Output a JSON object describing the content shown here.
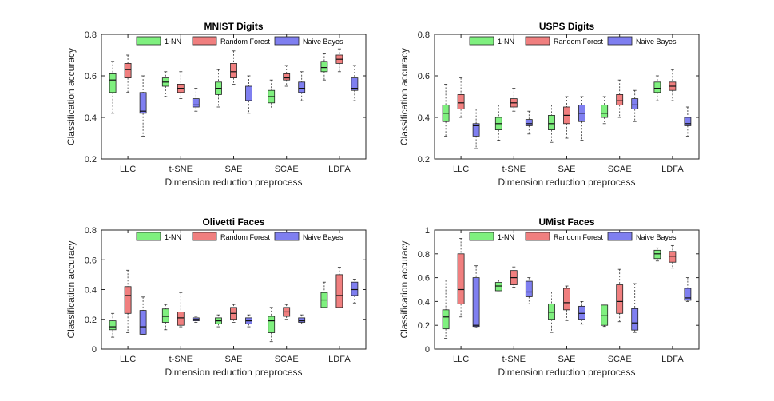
{
  "legend_labels": [
    "1-NN",
    "Random Forest",
    "Naive Bayes"
  ],
  "colors": {
    "nn": "#7ff07f",
    "rf": "#f07f7f",
    "nb": "#7f7ff0"
  },
  "chart_data": [
    {
      "type": "box",
      "title": "MNIST Digits",
      "xlabel": "Dimension reduction preprocess",
      "ylabel": "Classification accuracy",
      "ylim": [
        0.2,
        0.8
      ],
      "yticks": [
        "0.2",
        "0.4",
        "0.6",
        "0.8"
      ],
      "categories": [
        "LLC",
        "t-SNE",
        "SAE",
        "SCAE",
        "LDFA"
      ],
      "series": [
        {
          "name": "1-NN",
          "boxes": [
            {
              "min": 0.42,
              "q1": 0.52,
              "median": 0.58,
              "q3": 0.61,
              "max": 0.67
            },
            {
              "min": 0.5,
              "q1": 0.55,
              "median": 0.57,
              "q3": 0.59,
              "max": 0.62
            },
            {
              "min": 0.45,
              "q1": 0.51,
              "median": 0.54,
              "q3": 0.57,
              "max": 0.63
            },
            {
              "min": 0.44,
              "q1": 0.47,
              "median": 0.5,
              "q3": 0.53,
              "max": 0.58
            },
            {
              "min": 0.58,
              "q1": 0.62,
              "median": 0.64,
              "q3": 0.67,
              "max": 0.71
            }
          ]
        },
        {
          "name": "Random Forest",
          "boxes": [
            {
              "min": 0.52,
              "q1": 0.59,
              "median": 0.63,
              "q3": 0.66,
              "max": 0.7
            },
            {
              "min": 0.49,
              "q1": 0.52,
              "median": 0.54,
              "q3": 0.56,
              "max": 0.62
            },
            {
              "min": 0.56,
              "q1": 0.59,
              "median": 0.62,
              "q3": 0.66,
              "max": 0.72
            },
            {
              "min": 0.55,
              "q1": 0.58,
              "median": 0.59,
              "q3": 0.61,
              "max": 0.65
            },
            {
              "min": 0.62,
              "q1": 0.66,
              "median": 0.68,
              "q3": 0.7,
              "max": 0.73
            }
          ]
        },
        {
          "name": "Naive Bayes",
          "boxes": [
            {
              "min": 0.31,
              "q1": 0.42,
              "median": 0.43,
              "q3": 0.52,
              "max": 0.6
            },
            {
              "min": 0.43,
              "q1": 0.45,
              "median": 0.46,
              "q3": 0.49,
              "max": 0.54
            },
            {
              "min": 0.42,
              "q1": 0.48,
              "median": 0.48,
              "q3": 0.55,
              "max": 0.6
            },
            {
              "min": 0.48,
              "q1": 0.52,
              "median": 0.54,
              "q3": 0.57,
              "max": 0.62
            },
            {
              "min": 0.48,
              "q1": 0.53,
              "median": 0.54,
              "q3": 0.59,
              "max": 0.65
            }
          ]
        }
      ]
    },
    {
      "type": "box",
      "title": "USPS Digits",
      "xlabel": "Dimension reduction preprocess",
      "ylabel": "Classification accuracy",
      "ylim": [
        0.2,
        0.8
      ],
      "yticks": [
        "0.2",
        "0.4",
        "0.6",
        "0.8"
      ],
      "categories": [
        "LLC",
        "t-SNE",
        "SAE",
        "SCAE",
        "LDFA"
      ],
      "series": [
        {
          "name": "1-NN",
          "boxes": [
            {
              "min": 0.31,
              "q1": 0.38,
              "median": 0.42,
              "q3": 0.46,
              "max": 0.56
            },
            {
              "min": 0.29,
              "q1": 0.34,
              "median": 0.37,
              "q3": 0.4,
              "max": 0.46
            },
            {
              "min": 0.28,
              "q1": 0.34,
              "median": 0.37,
              "q3": 0.41,
              "max": 0.46
            },
            {
              "min": 0.37,
              "q1": 0.4,
              "median": 0.42,
              "q3": 0.46,
              "max": 0.5
            },
            {
              "min": 0.48,
              "q1": 0.52,
              "median": 0.54,
              "q3": 0.57,
              "max": 0.6
            }
          ]
        },
        {
          "name": "Random Forest",
          "boxes": [
            {
              "min": 0.4,
              "q1": 0.44,
              "median": 0.47,
              "q3": 0.51,
              "max": 0.59
            },
            {
              "min": 0.43,
              "q1": 0.45,
              "median": 0.47,
              "q3": 0.49,
              "max": 0.54
            },
            {
              "min": 0.3,
              "q1": 0.37,
              "median": 0.41,
              "q3": 0.45,
              "max": 0.5
            },
            {
              "min": 0.4,
              "q1": 0.46,
              "median": 0.48,
              "q3": 0.51,
              "max": 0.58
            },
            {
              "min": 0.48,
              "q1": 0.53,
              "median": 0.55,
              "q3": 0.57,
              "max": 0.63
            }
          ]
        },
        {
          "name": "Naive Bayes",
          "boxes": [
            {
              "min": 0.25,
              "q1": 0.31,
              "median": 0.36,
              "q3": 0.37,
              "max": 0.44
            },
            {
              "min": 0.32,
              "q1": 0.36,
              "median": 0.37,
              "q3": 0.39,
              "max": 0.43
            },
            {
              "min": 0.29,
              "q1": 0.38,
              "median": 0.42,
              "q3": 0.46,
              "max": 0.5
            },
            {
              "min": 0.38,
              "q1": 0.44,
              "median": 0.46,
              "q3": 0.49,
              "max": 0.53
            },
            {
              "min": 0.31,
              "q1": 0.36,
              "median": 0.37,
              "q3": 0.4,
              "max": 0.45
            }
          ]
        }
      ]
    },
    {
      "type": "box",
      "title": "Olivetti Faces",
      "xlabel": "Dimension reduction preprocess",
      "ylabel": "Classification accuracy",
      "ylim": [
        0,
        0.8
      ],
      "yticks": [
        "0",
        "0.2",
        "0.4",
        "0.6",
        "0.8"
      ],
      "categories": [
        "LLC",
        "t-SNE",
        "SAE",
        "SCAE",
        "LDFA"
      ],
      "series": [
        {
          "name": "1-NN",
          "boxes": [
            {
              "min": 0.08,
              "q1": 0.13,
              "median": 0.15,
              "q3": 0.19,
              "max": 0.24
            },
            {
              "min": 0.13,
              "q1": 0.18,
              "median": 0.22,
              "q3": 0.27,
              "max": 0.3
            },
            {
              "min": 0.15,
              "q1": 0.17,
              "median": 0.19,
              "q3": 0.21,
              "max": 0.23
            },
            {
              "min": 0.05,
              "q1": 0.11,
              "median": 0.19,
              "q3": 0.22,
              "max": 0.28
            },
            {
              "min": 0.28,
              "q1": 0.28,
              "median": 0.33,
              "q3": 0.38,
              "max": 0.45
            }
          ]
        },
        {
          "name": "Random Forest",
          "boxes": [
            {
              "min": 0.11,
              "q1": 0.24,
              "median": 0.36,
              "q3": 0.42,
              "max": 0.53
            },
            {
              "min": 0.15,
              "q1": 0.16,
              "median": 0.21,
              "q3": 0.25,
              "max": 0.38
            },
            {
              "min": 0.18,
              "q1": 0.2,
              "median": 0.24,
              "q3": 0.28,
              "max": 0.3
            },
            {
              "min": 0.2,
              "q1": 0.22,
              "median": 0.25,
              "q3": 0.28,
              "max": 0.3
            },
            {
              "min": 0.28,
              "q1": 0.28,
              "median": 0.36,
              "q3": 0.5,
              "max": 0.55
            }
          ]
        },
        {
          "name": "Naive Bayes",
          "boxes": [
            {
              "min": 0.1,
              "q1": 0.1,
              "median": 0.15,
              "q3": 0.26,
              "max": 0.35
            },
            {
              "min": 0.18,
              "q1": 0.19,
              "median": 0.2,
              "q3": 0.21,
              "max": 0.22
            },
            {
              "min": 0.15,
              "q1": 0.17,
              "median": 0.19,
              "q3": 0.21,
              "max": 0.23
            },
            {
              "min": 0.17,
              "q1": 0.18,
              "median": 0.19,
              "q3": 0.21,
              "max": 0.23
            },
            {
              "min": 0.31,
              "q1": 0.36,
              "median": 0.4,
              "q3": 0.45,
              "max": 0.47
            }
          ]
        }
      ]
    },
    {
      "type": "box",
      "title": "UMist Faces",
      "xlabel": "Dimension reduction preprocess",
      "ylabel": "Classification accuracy",
      "ylim": [
        0,
        1
      ],
      "yticks": [
        "0",
        "0.2",
        "0.4",
        "0.6",
        "0.8",
        "1"
      ],
      "categories": [
        "LLC",
        "t-SNE",
        "SAE",
        "SCAE",
        "LDFA"
      ],
      "series": [
        {
          "name": "1-NN",
          "boxes": [
            {
              "min": 0.09,
              "q1": 0.17,
              "median": 0.27,
              "q3": 0.33,
              "max": 0.58
            },
            {
              "min": 0.49,
              "q1": 0.49,
              "median": 0.53,
              "q3": 0.56,
              "max": 0.58
            },
            {
              "min": 0.14,
              "q1": 0.25,
              "median": 0.31,
              "q3": 0.38,
              "max": 0.48
            },
            {
              "min": 0.19,
              "q1": 0.2,
              "median": 0.28,
              "q3": 0.37,
              "max": 0.37
            },
            {
              "min": 0.74,
              "q1": 0.76,
              "median": 0.8,
              "q3": 0.83,
              "max": 0.85
            }
          ]
        },
        {
          "name": "Random Forest",
          "boxes": [
            {
              "min": 0.27,
              "q1": 0.38,
              "median": 0.5,
              "q3": 0.8,
              "max": 0.93
            },
            {
              "min": 0.52,
              "q1": 0.54,
              "median": 0.6,
              "q3": 0.66,
              "max": 0.69
            },
            {
              "min": 0.24,
              "q1": 0.33,
              "median": 0.39,
              "q3": 0.51,
              "max": 0.53
            },
            {
              "min": 0.23,
              "q1": 0.3,
              "median": 0.4,
              "q3": 0.54,
              "max": 0.67
            },
            {
              "min": 0.68,
              "q1": 0.73,
              "median": 0.78,
              "q3": 0.82,
              "max": 0.87
            }
          ]
        },
        {
          "name": "Naive Bayes",
          "boxes": [
            {
              "min": 0.18,
              "q1": 0.19,
              "median": 0.2,
              "q3": 0.6,
              "max": 0.7
            },
            {
              "min": 0.38,
              "q1": 0.44,
              "median": 0.48,
              "q3": 0.57,
              "max": 0.6
            },
            {
              "min": 0.21,
              "q1": 0.25,
              "median": 0.3,
              "q3": 0.36,
              "max": 0.4
            },
            {
              "min": 0.14,
              "q1": 0.16,
              "median": 0.22,
              "q3": 0.34,
              "max": 0.55
            },
            {
              "min": 0.4,
              "q1": 0.41,
              "median": 0.43,
              "q3": 0.51,
              "max": 0.6
            }
          ]
        }
      ]
    }
  ]
}
